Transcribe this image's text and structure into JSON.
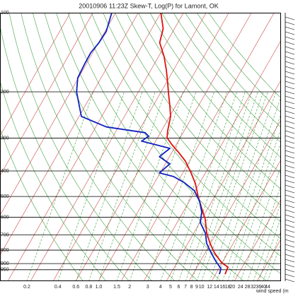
{
  "chart_data": {
    "type": "skewt",
    "title": "20010906 11:23Z Skew-T, Log(P) for Lamont, OK",
    "ylim": [
      100,
      1050
    ],
    "log_y": true,
    "yticks": [
      100,
      200,
      300,
      400,
      500,
      600,
      700,
      800,
      900,
      950
    ],
    "grid": true,
    "isotherms": [
      -110,
      -100,
      -90,
      -80,
      -70,
      -60,
      -50,
      -40,
      -30,
      -20,
      -10,
      0,
      10,
      20,
      30,
      40
    ],
    "isotherm_color": "#d04848",
    "dry_adiabats": [
      -40,
      -30,
      -20,
      -10,
      0,
      10,
      20,
      30,
      40,
      50,
      60,
      70,
      80,
      90,
      100,
      110,
      120,
      130,
      140,
      150,
      160
    ],
    "adiabat_color": "#44a044",
    "mixing_ratio_ticks": [
      0.2,
      0.4,
      0.6,
      0.8,
      {
        "value": 1,
        "label": "1.0"
      },
      1.5,
      2,
      3,
      4,
      5,
      6,
      7,
      8,
      9,
      10,
      12,
      14,
      16,
      18,
      20,
      24,
      28,
      32,
      36,
      40,
      44
    ],
    "mixing_ratio_color": "#3c9c3c",
    "wind_label": "wind speed (m",
    "series": [
      {
        "color": "#e01010",
        "x": [
          -70,
          -65,
          -63,
          -57.5,
          -53,
          -48.8,
          -45.8,
          -42.6,
          -39.6,
          -37.3,
          -35.8,
          -31.8,
          -27.2,
          -21.8,
          -16.3,
          -11.7,
          -7.3,
          -2.7,
          1.5,
          5.7,
          9.9,
          14.1,
          19.8,
          23.6,
          24.2
        ],
        "values": [
          100,
          115,
          130,
          147,
          166,
          188,
          206,
          226,
          248,
          281,
          299,
          318,
          339,
          367,
          407,
          447,
          500,
          555,
          609,
          689,
          756,
          819,
          894,
          928,
          987
        ]
      },
      {
        "color": "#1020c0",
        "x": [
          -91.7,
          -89.4,
          -89.8,
          -90.9,
          -90.8,
          -90.3,
          -87.3,
          -82.6,
          -79,
          -65.3,
          -46.8,
          -44.3,
          -46.2,
          -31.9,
          -34.4,
          -28,
          -30.3,
          -23.2,
          -17.1,
          -10.3,
          -5.4,
          -1.8,
          0.2,
          5.1,
          8.4,
          12.6,
          16.9,
          20.9,
          21.7
        ],
        "values": [
          100,
          118,
          130,
          142,
          156,
          177,
          200,
          226,
          248,
          272,
          286,
          295,
          308,
          328,
          353,
          376,
          407,
          420,
          442,
          476,
          522,
          573,
          628,
          689,
          756,
          819,
          883,
          940,
          987
        ]
      }
    ]
  }
}
